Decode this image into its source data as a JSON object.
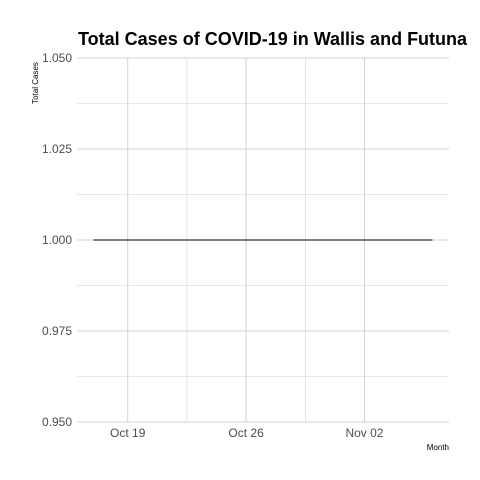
{
  "chart_data": {
    "type": "line",
    "title": "Total Cases of COVID-19 in Wallis and Futuna",
    "xlabel": "Month",
    "ylabel": "Total Cases",
    "x_ticks": [
      {
        "date": "2020-10-19",
        "label": "Oct 19"
      },
      {
        "date": "2020-10-26",
        "label": "Oct 26"
      },
      {
        "date": "2020-11-02",
        "label": "Nov 02"
      }
    ],
    "y_ticks": [
      0.95,
      0.975,
      1.0,
      1.025,
      1.05
    ],
    "y_tick_labels": [
      "0.950",
      "0.975",
      "1.000",
      "1.025",
      "1.050"
    ],
    "xlim": [
      "2020-10-16",
      "2020-11-07"
    ],
    "ylim": [
      0.95,
      1.05
    ],
    "grid": true,
    "series": [
      {
        "x": [
          "2020-10-17",
          "2020-10-18",
          "2020-10-19",
          "2020-10-20",
          "2020-10-21",
          "2020-10-22",
          "2020-10-23",
          "2020-10-24",
          "2020-10-25",
          "2020-10-26",
          "2020-10-27",
          "2020-10-28",
          "2020-10-29",
          "2020-10-30",
          "2020-10-31",
          "2020-11-01",
          "2020-11-02",
          "2020-11-03",
          "2020-11-04",
          "2020-11-05",
          "2020-11-06"
        ],
        "y": [
          1,
          1,
          1,
          1,
          1,
          1,
          1,
          1,
          1,
          1,
          1,
          1,
          1,
          1,
          1,
          1,
          1,
          1,
          1,
          1,
          1
        ]
      }
    ],
    "colors": {
      "line": "#000000",
      "grid": "#d3d3d3",
      "background": "#ffffff",
      "tick_text": "#4d4d4d"
    }
  }
}
